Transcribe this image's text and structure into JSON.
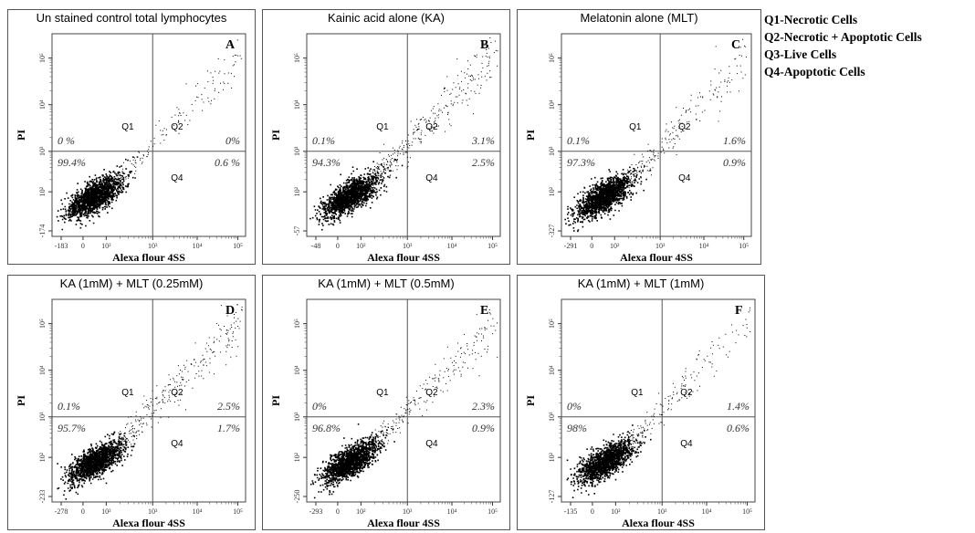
{
  "legend": [
    "Q1-Necrotic Cells",
    "Q2-Necrotic + Apoptotic Cells",
    "Q3-Live Cells",
    "Q4-Apoptotic Cells"
  ],
  "chart_data": [
    {
      "type": "scatter",
      "title": "Un stained control total lymphocytes",
      "letter": "A",
      "xlabel": "Alexa flour 4SS",
      "ylabel": "PI",
      "x_ticks": [
        "-183",
        "0",
        "10²",
        "10³",
        "10⁴",
        "10⁵"
      ],
      "y_ticks": [
        "-174",
        "10²",
        "10³",
        "10⁴",
        "10⁵"
      ],
      "quadrant_labels": [
        "Q1",
        "Q2",
        "Q4"
      ],
      "percentages": {
        "Q1": "0 %",
        "Q2": "0%",
        "Q3": "99.4%",
        "Q4": "0.6 %"
      },
      "values": {
        "Q1": 0,
        "Q2": 0,
        "Q3": 99.4,
        "Q4": 0.6
      }
    },
    {
      "type": "scatter",
      "title": "Kainic acid alone (KA)",
      "letter": "B",
      "xlabel": "Alexa flour 4SS",
      "ylabel": "PI",
      "x_ticks": [
        "-48",
        "0",
        "10²",
        "10³",
        "10⁴",
        "10⁵"
      ],
      "y_ticks": [
        "-57",
        "10²",
        "10³",
        "10⁴",
        "10⁵"
      ],
      "quadrant_labels": [
        "Q1",
        "Q2",
        "Q4"
      ],
      "percentages": {
        "Q1": "0.1%",
        "Q2": "3.1%",
        "Q3": "94.3%",
        "Q4": "2.5%"
      },
      "values": {
        "Q1": 0.1,
        "Q2": 3.1,
        "Q3": 94.3,
        "Q4": 2.5
      }
    },
    {
      "type": "scatter",
      "title": "Melatonin alone (MLT)",
      "letter": "C",
      "xlabel": "Alexa flour 4SS",
      "ylabel": "PI",
      "x_ticks": [
        "-291",
        "0",
        "10²",
        "10³",
        "10⁴",
        "10⁵"
      ],
      "y_ticks": [
        "-327",
        "10²",
        "10³",
        "10⁴",
        "10⁵"
      ],
      "quadrant_labels": [
        "Q1",
        "Q2",
        "Q4"
      ],
      "percentages": {
        "Q1": "0.1%",
        "Q2": "1.6%",
        "Q3": "97.3%",
        "Q4": "0.9%"
      },
      "values": {
        "Q1": 0.1,
        "Q2": 1.6,
        "Q3": 97.3,
        "Q4": 0.9
      }
    },
    {
      "type": "scatter",
      "title": "KA (1mM) + MLT (0.25mM)",
      "letter": "D",
      "xlabel": "Alexa flour 4SS",
      "ylabel": "PI",
      "x_ticks": [
        "-278",
        "0",
        "10²",
        "10³",
        "10⁴",
        "10⁵"
      ],
      "y_ticks": [
        "-233",
        "10²",
        "10³",
        "10⁴",
        "10⁵"
      ],
      "quadrant_labels": [
        "Q1",
        "Q2",
        "Q4"
      ],
      "percentages": {
        "Q1": "0.1%",
        "Q2": "2.5%",
        "Q3": "95.7%",
        "Q4": "1.7%"
      },
      "values": {
        "Q1": 0.1,
        "Q2": 2.5,
        "Q3": 95.7,
        "Q4": 1.7
      }
    },
    {
      "type": "scatter",
      "title": "KA (1mM) + MLT (0.5mM)",
      "letter": "E",
      "xlabel": "Alexa flour 4SS",
      "ylabel": "PI",
      "x_ticks": [
        "-293",
        "0",
        "10²",
        "10³",
        "10⁴",
        "10⁵"
      ],
      "y_ticks": [
        "-250",
        "10²",
        "10³",
        "10⁴",
        "10⁵"
      ],
      "quadrant_labels": [
        "Q1",
        "Q2",
        "Q4"
      ],
      "percentages": {
        "Q1": "0%",
        "Q2": "2.3%",
        "Q3": "96.8%",
        "Q4": "0.9%"
      },
      "values": {
        "Q1": 0,
        "Q2": 2.3,
        "Q3": 96.8,
        "Q4": 0.9
      }
    },
    {
      "type": "scatter",
      "title": "KA (1mM) + MLT (1mM)",
      "letter": "F",
      "xlabel": "Alexa flour 4SS",
      "ylabel": "PI",
      "x_ticks": [
        "-135",
        "0",
        "10²",
        "10³",
        "10⁴",
        "10⁵"
      ],
      "y_ticks": [
        "-127",
        "10²",
        "10³",
        "10⁴",
        "10⁵"
      ],
      "quadrant_labels": [
        "Q1",
        "Q2",
        "Q4"
      ],
      "percentages": {
        "Q1": "0%",
        "Q2": "1.4%",
        "Q3": "98%",
        "Q4": "0.6%"
      },
      "values": {
        "Q1": 0,
        "Q2": 1.4,
        "Q3": 98,
        "Q4": 0.6
      }
    }
  ]
}
